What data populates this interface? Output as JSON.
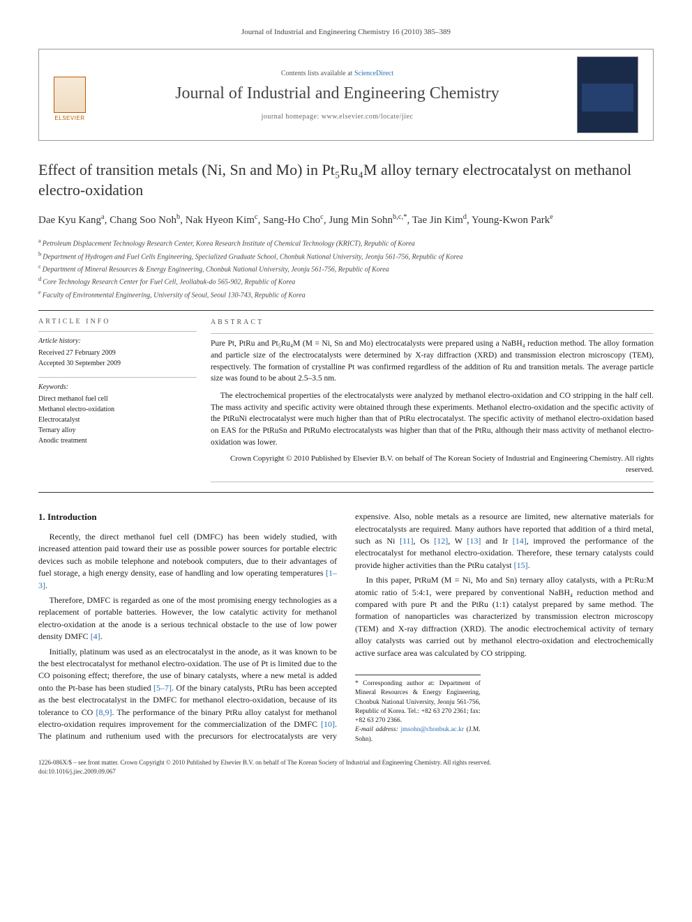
{
  "running_head": "Journal of Industrial and Engineering Chemistry 16 (2010) 385–389",
  "header": {
    "contents_prefix": "Contents lists available at ",
    "contents_link": "ScienceDirect",
    "journal_name": "Journal of Industrial and Engineering Chemistry",
    "homepage_prefix": "journal homepage: ",
    "homepage_url": "www.elsevier.com/locate/jiec",
    "publisher_word": "ELSEVIER"
  },
  "title_html": "Effect of transition metals (Ni, Sn and Mo) in Pt₅Ru₄M alloy ternary electrocatalyst on methanol electro-oxidation",
  "authors": [
    {
      "name": "Dae Kyu Kang",
      "sup": "a"
    },
    {
      "name": "Chang Soo Noh",
      "sup": "b"
    },
    {
      "name": "Nak Hyeon Kim",
      "sup": "c"
    },
    {
      "name": "Sang-Ho Cho",
      "sup": "c"
    },
    {
      "name": "Jung Min Sohn",
      "sup": "b,c,*"
    },
    {
      "name": "Tae Jin Kim",
      "sup": "d"
    },
    {
      "name": "Young-Kwon Park",
      "sup": "e"
    }
  ],
  "affiliations": [
    {
      "sup": "a",
      "text": "Petroleum Displacement Technology Research Center, Korea Research Institute of Chemical Technology (KRICT), Republic of Korea"
    },
    {
      "sup": "b",
      "text": "Department of Hydrogen and Fuel Cells Engineering, Specialized Graduate School, Chonbuk National University, Jeonju 561-756, Republic of Korea"
    },
    {
      "sup": "c",
      "text": "Department of Mineral Resources & Energy Engineering, Chonbuk National University, Jeonju 561-756, Republic of Korea"
    },
    {
      "sup": "d",
      "text": "Core Technology Research Center for Fuel Cell, Jeollabuk-do 565-902, Republic of Korea"
    },
    {
      "sup": "e",
      "text": "Faculty of Environmental Engineering, University of Seoul, Seoul 130-743, Republic of Korea"
    }
  ],
  "article_info": {
    "head": "ARTICLE INFO",
    "history_title": "Article history:",
    "received": "Received 27 February 2009",
    "accepted": "Accepted 30 September 2009",
    "keywords_title": "Keywords:",
    "keywords": [
      "Direct methanol fuel cell",
      "Methanol electro-oxidation",
      "Electrocatalyst",
      "Ternary alloy",
      "Anodic treatment"
    ]
  },
  "abstract": {
    "head": "ABSTRACT",
    "p1": "Pure Pt, PtRu and Pt₅Ru₄M (M = Ni, Sn and Mo) electrocatalysts were prepared using a NaBH₄ reduction method. The alloy formation and particle size of the electrocatalysts were determined by X-ray diffraction (XRD) and transmission electron microscopy (TEM), respectively. The formation of crystalline Pt was confirmed regardless of the addition of Ru and transition metals. The average particle size was found to be about 2.5–3.5 nm.",
    "p2": "The electrochemical properties of the electrocatalysts were analyzed by methanol electro-oxidation and CO stripping in the half cell. The mass activity and specific activity were obtained through these experiments. Methanol electro-oxidation and the specific activity of the PtRuNi electrocatalyst were much higher than that of PtRu electrocatalyst. The specific activity of methanol electro-oxidation based on EAS for the PtRuSn and PtRuMo electrocatalysts was higher than that of the PtRu, although their mass activity of methanol electro-oxidation was lower.",
    "copyright": "Crown Copyright © 2010 Published by Elsevier B.V. on behalf of The Korean Society of Industrial and Engineering Chemistry. All rights reserved."
  },
  "body": {
    "section_heading": "1. Introduction",
    "p1": "Recently, the direct methanol fuel cell (DMFC) has been widely studied, with increased attention paid toward their use as possible power sources for portable electric devices such as mobile telephone and notebook computers, due to their advantages of fuel storage, a high energy density, ease of handling and low operating temperatures ",
    "p1_ref": "[1–3]",
    "p1_end": ".",
    "p2": "Therefore, DMFC is regarded as one of the most promising energy technologies as a replacement of portable batteries. However, the low catalytic activity for methanol electro-oxidation at the anode is a serious technical obstacle to the use of low power density DMFC ",
    "p2_ref": "[4]",
    "p2_end": ".",
    "p3a": "Initially, platinum was used as an electrocatalyst in the anode, as it was known to be the best electrocatalyst for methanol electro-oxidation. The use of Pt is limited due to the CO poisoning effect; therefore, the use of binary catalysts, where a new metal is added onto the Pt-base has been studied ",
    "p3_ref1": "[5–7]",
    "p3b": ". Of the binary catalysts, PtRu has been accepted as the best electrocatalyst in the DMFC for methanol electro-oxidation, because of its tolerance to CO ",
    "p3_ref2": "[8,9]",
    "p3c": ". The performance of the binary PtRu alloy catalyst for methanol electro-oxidation requires improvement for the commercialization of the DMFC ",
    "p3_ref3": "[10]",
    "p3d": ". The platinum and ruthenium used with the precursors for electrocatalysts are very expensive. Also, noble metals as a resource are limited, new alternative materials for electrocatalysts are required. Many authors have reported that addition of a third metal, such as Ni ",
    "p3_ref4": "[11]",
    "p3e": ", Os ",
    "p3_ref5": "[12]",
    "p3f": ", W ",
    "p3_ref6": "[13]",
    "p3g": " and Ir ",
    "p3_ref7": "[14]",
    "p3h": ", improved the performance of the electrocatalyst for methanol electro-oxidation. Therefore, these ternary catalysts could provide higher activities than the PtRu catalyst ",
    "p3_ref8": "[15]",
    "p3i": ".",
    "p4": "In this paper, PtRuM (M = Ni, Mo and Sn) ternary alloy catalysts, with a Pt:Ru:M atomic ratio of 5:4:1, were prepared by conventional NaBH₄ reduction method and compared with pure Pt and the PtRu (1:1) catalyst prepared by same method. The formation of nanoparticles was characterized by transmission electron microscopy (TEM) and X-ray diffraction (XRD). The anodic electrochemical activity of ternary alloy catalysts was carried out by methanol electro-oxidation and electrochemically active surface area was calculated by CO stripping."
  },
  "corr": {
    "text": "* Corresponding author at: Department of Mineral Resources & Energy Engineering, Chonbuk National University, Jeonju 561-756, Republic of Korea. Tel.: +82 63 270 2361; fax: +82 63 270 2366.",
    "email_label": "E-mail address: ",
    "email": "jmsohn@chonbuk.ac.kr",
    "email_suffix": " (J.M. Sohn)."
  },
  "footer": {
    "line1": "1226-086X/$ – see front matter. Crown Copyright © 2010 Published by Elsevier B.V. on behalf of The Korean Society of Industrial and Engineering Chemistry. All rights reserved.",
    "doi": "doi:10.1016/j.jiec.2009.09.067"
  }
}
